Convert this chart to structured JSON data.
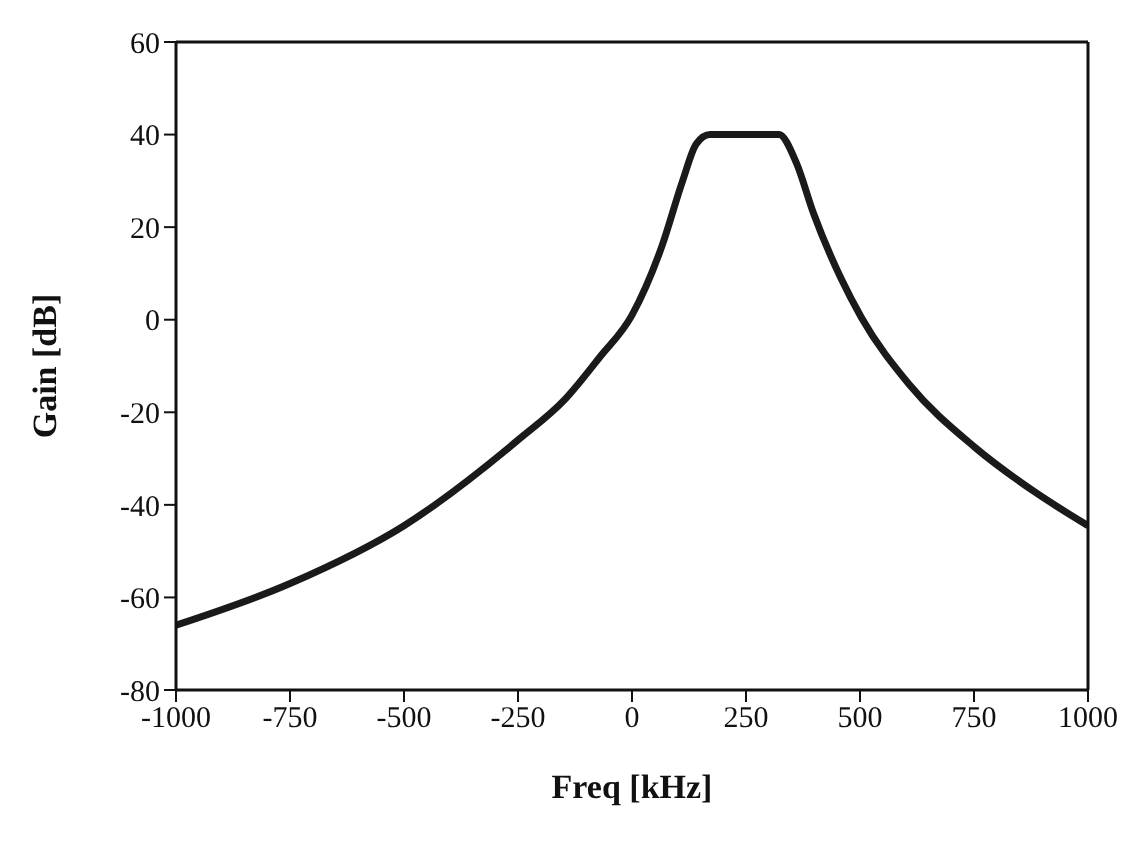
{
  "chart_data": {
    "type": "line",
    "xlabel": "Freq [kHz]",
    "ylabel": "Gain [dB]",
    "x": [
      -1000,
      -750,
      -500,
      -250,
      -145,
      -70,
      0,
      66,
      111,
      141,
      171,
      322,
      360,
      398,
      458,
      503,
      608,
      751,
      880,
      1000
    ],
    "series": [
      {
        "color": "#1a1a1a",
        "values": [
          -66,
          -57,
          -44.5,
          -26,
          -17,
          -8,
          1,
          16,
          30,
          38,
          40,
          40,
          34,
          23,
          9,
          0.5,
          -14,
          -27.5,
          -37,
          -44.5
        ]
      }
    ],
    "xlim": [
      -1000,
      1000
    ],
    "xticks": [
      -1000,
      -750,
      -500,
      -250,
      0,
      250,
      500,
      750,
      1000
    ],
    "ylim": [
      -80,
      60
    ],
    "yticks": [
      -80,
      -60,
      -40,
      -20,
      0,
      20,
      40,
      60
    ],
    "grid": false,
    "legend": false,
    "marker": "none",
    "line_style": "solid"
  }
}
